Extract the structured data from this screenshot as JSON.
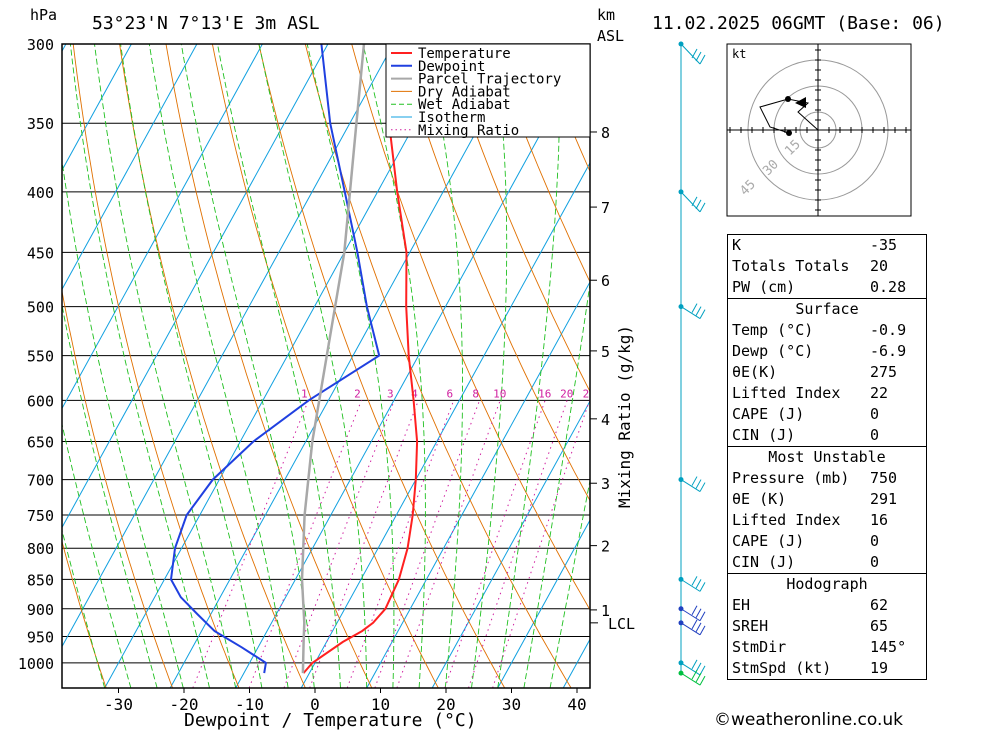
{
  "header": {
    "location": "53°23'N 7°13'E 3m ASL",
    "datetime": "11.02.2025 06GMT (Base: 06)",
    "pressure_unit": "hPa",
    "height_unit_km": "km",
    "height_unit_asl": "ASL"
  },
  "chart_data": {
    "type": "line",
    "xlabel": "Dewpoint / Temperature (°C)",
    "ylabel": "hPa",
    "xlim": [
      -40,
      40
    ],
    "ylim": [
      1050,
      300
    ],
    "x_ticks": [
      -30,
      -20,
      -10,
      0,
      10,
      20,
      30,
      40
    ],
    "y_ticks": [
      300,
      350,
      400,
      450,
      500,
      550,
      600,
      650,
      700,
      750,
      800,
      850,
      900,
      950,
      1000
    ],
    "km_ticks": [
      {
        "km": 1,
        "p": 902
      },
      {
        "km": 2,
        "p": 796
      },
      {
        "km": 3,
        "p": 705
      },
      {
        "km": 4,
        "p": 622
      },
      {
        "km": 5,
        "p": 545
      },
      {
        "km": 6,
        "p": 475
      },
      {
        "km": 7,
        "p": 412
      },
      {
        "km": 8,
        "p": 356
      }
    ],
    "lcl": {
      "label": "LCL",
      "p": 925
    },
    "mixing_ratio_label": "Mixing Ratio (g/kg)",
    "mixing_ratios": [
      1,
      2,
      3,
      4,
      6,
      8,
      10,
      16,
      20,
      25
    ],
    "legend": [
      "Temperature",
      "Dewpoint",
      "Parcel Trajectory",
      "Dry Adiabat",
      "Wet Adiabat",
      "Isotherm",
      "Mixing Ratio"
    ],
    "colors": {
      "temperature": "#ff2020",
      "dewpoint": "#2040e0",
      "parcel": "#a8a8a8",
      "dry": "#e07000",
      "wet": "#20c020",
      "isotherm": "#10a0e0",
      "mixing": "#d020a0",
      "wind": "#00a0c0",
      "wind_low": "#2040c0"
    },
    "series": [
      {
        "name": "Temperature",
        "points": [
          [
            -0.9,
            1020
          ],
          [
            -0.4,
            1000
          ],
          [
            2.5,
            960
          ],
          [
            4.5,
            940
          ],
          [
            5.5,
            925
          ],
          [
            6.2,
            900
          ],
          [
            5.8,
            850
          ],
          [
            4.5,
            800
          ],
          [
            2.5,
            750
          ],
          [
            0,
            700
          ],
          [
            -3,
            650
          ],
          [
            -7,
            600
          ],
          [
            -11.5,
            550
          ],
          [
            -16,
            500
          ],
          [
            -20.5,
            450
          ],
          [
            -27,
            400
          ],
          [
            -34,
            350
          ],
          [
            -41,
            300
          ]
        ]
      },
      {
        "name": "Dewpoint",
        "points": [
          [
            -6.9,
            1020
          ],
          [
            -7.5,
            1000
          ],
          [
            -12.5,
            970
          ],
          [
            -18,
            940
          ],
          [
            -22,
            910
          ],
          [
            -26,
            880
          ],
          [
            -29,
            850
          ],
          [
            -31,
            800
          ],
          [
            -32,
            750
          ],
          [
            -31,
            700
          ],
          [
            -28,
            650
          ],
          [
            -23,
            600
          ],
          [
            -16,
            550
          ],
          [
            -22,
            500
          ],
          [
            -28,
            450
          ],
          [
            -35,
            400
          ],
          [
            -43,
            350
          ],
          [
            -51,
            300
          ]
        ]
      },
      {
        "name": "Parcel Trajectory",
        "points": [
          [
            -1,
            1020
          ],
          [
            -3.5,
            960
          ],
          [
            -5,
            925
          ],
          [
            -9,
            850
          ],
          [
            -14,
            750
          ],
          [
            -19,
            650
          ],
          [
            -24,
            550
          ],
          [
            -30,
            450
          ],
          [
            -39,
            350
          ],
          [
            -51,
            250
          ]
        ]
      }
    ]
  },
  "hodograph": {
    "unit": "kt",
    "rings": [
      "15",
      "30",
      "45"
    ]
  },
  "wind_barbs_hpa": [
    300,
    400,
    500,
    700,
    850,
    900,
    925,
    1000,
    1020
  ],
  "indices": {
    "top": [
      {
        "label": "K",
        "value": "-35"
      },
      {
        "label": "Totals Totals",
        "value": "20"
      },
      {
        "label": "PW (cm)",
        "value": "0.28"
      }
    ],
    "surface": {
      "title": "Surface",
      "rows": [
        {
          "label": "Temp (°C)",
          "value": "-0.9"
        },
        {
          "label": "Dewp (°C)",
          "value": "-6.9"
        },
        {
          "label": "θE(K)",
          "value": "275"
        },
        {
          "label": "Lifted Index",
          "value": "22"
        },
        {
          "label": "CAPE (J)",
          "value": "0"
        },
        {
          "label": "CIN (J)",
          "value": "0"
        }
      ]
    },
    "most_unstable": {
      "title": "Most Unstable",
      "rows": [
        {
          "label": "Pressure (mb)",
          "value": "750"
        },
        {
          "label": "θE (K)",
          "value": "291"
        },
        {
          "label": "Lifted Index",
          "value": "16"
        },
        {
          "label": "CAPE (J)",
          "value": "0"
        },
        {
          "label": "CIN (J)",
          "value": "0"
        }
      ]
    },
    "hodograph": {
      "title": "Hodograph",
      "rows": [
        {
          "label": "EH",
          "value": "62"
        },
        {
          "label": "SREH",
          "value": "65"
        },
        {
          "label": "StmDir",
          "value": "145°"
        },
        {
          "label": "StmSpd (kt)",
          "value": "19"
        }
      ]
    }
  },
  "footer": {
    "copyright": "©weatheronline.co.uk"
  }
}
